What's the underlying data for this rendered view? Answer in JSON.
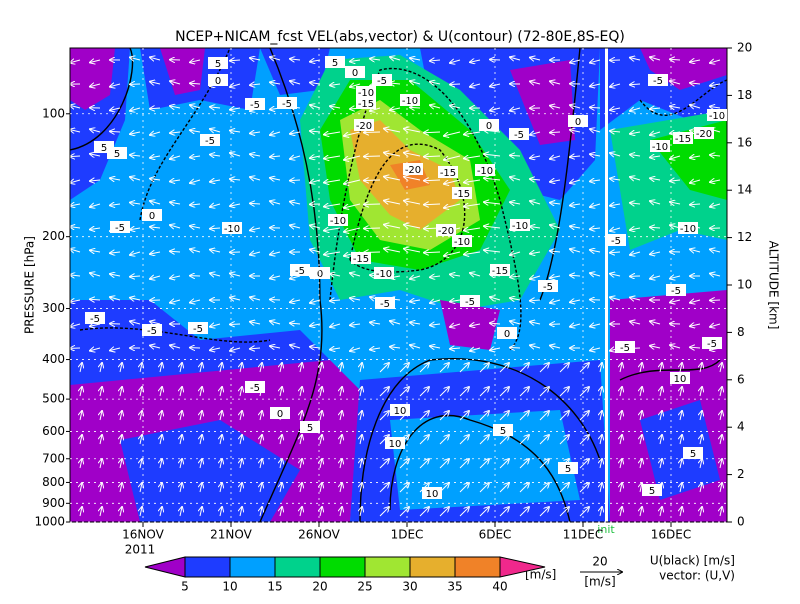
{
  "chart_data": {
    "type": "contour",
    "title": "NCEP+NICAM_fcst VEL(abs,vector) & U(contour)  (72-80E,8S-EQ)",
    "y_label": "PRESSURE [hPa]",
    "y2_label": "ALTITUDE [km]",
    "categories": [
      "16NOV",
      "21NOV",
      "26NOV",
      "1DEC",
      "6DEC",
      "11DEC",
      "16DEC"
    ],
    "year": "2011",
    "init_label": "init",
    "ylim": [
      1000,
      69
    ],
    "y_log": true,
    "yticks": [
      100,
      200,
      300,
      400,
      500,
      600,
      700,
      800,
      900,
      1000
    ],
    "y2lim": [
      0,
      20
    ],
    "y2ticks": [
      0,
      2,
      4,
      6,
      8,
      10,
      12,
      14,
      16,
      18,
      20
    ],
    "grid": true,
    "colorbar": {
      "levels": [
        5,
        10,
        15,
        20,
        25,
        30,
        35,
        40
      ],
      "colors": [
        "#a000c8",
        "#1e3cff",
        "#00a0ff",
        "#00d28c",
        "#00dc00",
        "#a0e632",
        "#e6af2d",
        "#f08228",
        "#f0288c"
      ],
      "unit": "[m/s]"
    },
    "vector_ref": {
      "value": 20,
      "unit": "[m/s]"
    },
    "legend_notes": [
      "U(black) [m/s]",
      "vector: (U,V)"
    ],
    "contour_labels": [
      5,
      5,
      0,
      0,
      -5,
      -10,
      -15,
      -20,
      -5,
      -5,
      -10,
      0,
      -5,
      0,
      5,
      5,
      -5,
      -20,
      -15,
      -10,
      -15,
      0,
      -5,
      -10,
      -10,
      -20,
      -10,
      -10,
      -15,
      -10,
      -15,
      -5,
      0,
      -5,
      -5,
      -5,
      -5,
      -5,
      -5,
      0,
      -5,
      -5,
      0,
      5,
      10,
      10,
      5,
      10,
      5,
      5,
      5,
      -5,
      -10,
      -10,
      -15,
      -20,
      -5,
      -10,
      -5,
      10,
      -5
    ]
  }
}
